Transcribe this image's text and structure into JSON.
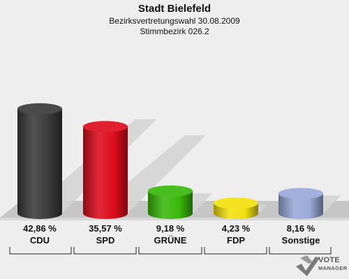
{
  "header": {
    "title": "Stadt Bielefeld",
    "subtitle1": "Bezirksvertretungswahl 30.08.2009",
    "subtitle2": "Stimmbezirk 026.2"
  },
  "chart_data": {
    "type": "bar",
    "categories": [
      "CDU",
      "SPD",
      "GRÜNE",
      "FDP",
      "Sonstige"
    ],
    "values": [
      42.86,
      35.57,
      9.18,
      4.23,
      8.16
    ],
    "value_labels": [
      "42,86 %",
      "35,57 %",
      "9,18 %",
      "4,23 %",
      "8,16 %"
    ],
    "colors": [
      "#3a3a3a",
      "#dd0c1d",
      "#3ab80b",
      "#f2e10f",
      "#9aaad8"
    ],
    "title": "Stadt Bielefeld",
    "xlabel": "",
    "ylabel": "",
    "ylim": [
      0,
      45
    ],
    "grid": false,
    "legend": "none"
  },
  "logo": {
    "line1": "VOTE",
    "line2": "MANAGER"
  }
}
